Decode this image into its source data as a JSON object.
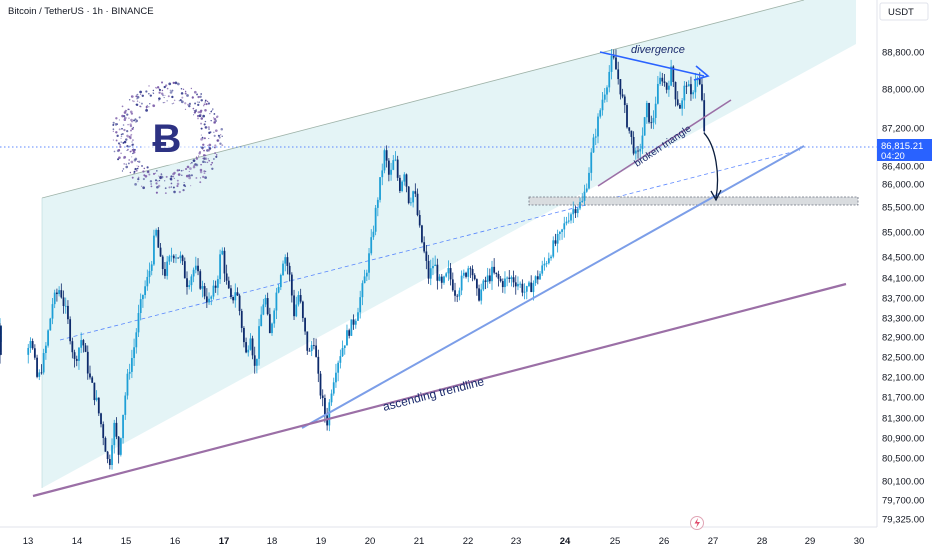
{
  "header": {
    "title": "Bitcoin / TetherUS · 1h · BINANCE",
    "currency": "USDT"
  },
  "price_badge": {
    "price": "86,815.21",
    "countdown": "04:20",
    "color": "#2962ff"
  },
  "alert_icon": "lightning-icon",
  "logo_icon": "bitcoin-logo-icon",
  "colors": {
    "up": "#1e9fd6",
    "down": "#0d2a6b",
    "channel_fill": "#dff2f5",
    "trendline": "#7c9ee8",
    "support": "#9b6fa6"
  },
  "annotations": {
    "divergence": "divergence",
    "broken_triangle": "broken triangle",
    "ascending_trendline": "ascending trendline"
  },
  "chart_data": {
    "type": "candlestick",
    "title": "Bitcoin / TetherUS · 1h · BINANCE",
    "ylim": [
      79325,
      89700
    ],
    "y_ticks": [
      {
        "value": 88800,
        "label": "88,800.00"
      },
      {
        "value": 88000,
        "label": "88,000.00"
      },
      {
        "value": 87200,
        "label": "87,200.00"
      },
      {
        "value": 86400,
        "label": "86,400.00"
      },
      {
        "value": 86000,
        "label": "86,000.00"
      },
      {
        "value": 85500,
        "label": "85,500.00"
      },
      {
        "value": 85000,
        "label": "85,000.00"
      },
      {
        "value": 84500,
        "label": "84,500.00"
      },
      {
        "value": 84100,
        "label": "84,100.00"
      },
      {
        "value": 83700,
        "label": "83,700.00"
      },
      {
        "value": 83300,
        "label": "83,300.00"
      },
      {
        "value": 82900,
        "label": "82,900.00"
      },
      {
        "value": 82500,
        "label": "82,500.00"
      },
      {
        "value": 82100,
        "label": "82,100.00"
      },
      {
        "value": 81700,
        "label": "81,700.00"
      },
      {
        "value": 81300,
        "label": "81,300.00"
      },
      {
        "value": 80900,
        "label": "80,900.00"
      },
      {
        "value": 80500,
        "label": "80,500.00"
      },
      {
        "value": 80100,
        "label": "80,100.00"
      },
      {
        "value": 79700,
        "label": "79,700.00"
      },
      {
        "value": 79325,
        "label": "79,325.00"
      }
    ],
    "x_ticks": [
      {
        "day": 13,
        "label": "13",
        "bold": false
      },
      {
        "day": 14,
        "label": "14",
        "bold": false
      },
      {
        "day": 15,
        "label": "15",
        "bold": false
      },
      {
        "day": 16,
        "label": "16",
        "bold": false
      },
      {
        "day": 17,
        "label": "17",
        "bold": true
      },
      {
        "day": 18,
        "label": "18",
        "bold": false
      },
      {
        "day": 19,
        "label": "19",
        "bold": false
      },
      {
        "day": 20,
        "label": "20",
        "bold": false
      },
      {
        "day": 21,
        "label": "21",
        "bold": false
      },
      {
        "day": 22,
        "label": "22",
        "bold": false
      },
      {
        "day": 23,
        "label": "23",
        "bold": false
      },
      {
        "day": 24,
        "label": "24",
        "bold": true
      },
      {
        "day": 25,
        "label": "25",
        "bold": false
      },
      {
        "day": 26,
        "label": "26",
        "bold": false
      },
      {
        "day": 27,
        "label": "27",
        "bold": false
      },
      {
        "day": 28,
        "label": "28",
        "bold": false
      },
      {
        "day": 29,
        "label": "29",
        "bold": false
      },
      {
        "day": 30,
        "label": "30",
        "bold": false
      }
    ],
    "current_price": 86815.21,
    "price_path": [
      [
        12.6,
        82800
      ],
      [
        12.75,
        83300
      ],
      [
        12.9,
        82500
      ],
      [
        13.05,
        82900
      ],
      [
        13.2,
        82000
      ],
      [
        13.35,
        82600
      ],
      [
        13.5,
        83600
      ],
      [
        13.65,
        83900
      ],
      [
        13.8,
        83300
      ],
      [
        13.95,
        82400
      ],
      [
        14.1,
        82900
      ],
      [
        14.25,
        82100
      ],
      [
        14.4,
        81600
      ],
      [
        14.55,
        80900
      ],
      [
        14.65,
        80300
      ],
      [
        14.75,
        81200
      ],
      [
        14.85,
        80600
      ],
      [
        14.95,
        81500
      ],
      [
        15.05,
        82200
      ],
      [
        15.15,
        82600
      ],
      [
        15.25,
        83300
      ],
      [
        15.35,
        83800
      ],
      [
        15.45,
        84100
      ],
      [
        15.55,
        84600
      ],
      [
        15.6,
        85100
      ],
      [
        15.7,
        84400
      ],
      [
        15.8,
        84200
      ],
      [
        15.95,
        84600
      ],
      [
        16.1,
        84500
      ],
      [
        16.25,
        84000
      ],
      [
        16.4,
        84300
      ],
      [
        16.55,
        83900
      ],
      [
        16.7,
        83600
      ],
      [
        16.85,
        84000
      ],
      [
        16.95,
        84700
      ],
      [
        17.05,
        84000
      ],
      [
        17.15,
        83600
      ],
      [
        17.25,
        83900
      ],
      [
        17.35,
        83300
      ],
      [
        17.45,
        82500
      ],
      [
        17.55,
        83000
      ],
      [
        17.65,
        82200
      ],
      [
        17.75,
        83200
      ],
      [
        17.85,
        83800
      ],
      [
        17.95,
        82900
      ],
      [
        18.05,
        83600
      ],
      [
        18.15,
        84100
      ],
      [
        18.25,
        84600
      ],
      [
        18.35,
        84200
      ],
      [
        18.45,
        83400
      ],
      [
        18.55,
        83800
      ],
      [
        18.65,
        83100
      ],
      [
        18.75,
        82500
      ],
      [
        18.85,
        82900
      ],
      [
        18.95,
        82000
      ],
      [
        19.05,
        81500
      ],
      [
        19.12,
        81200
      ],
      [
        19.2,
        81800
      ],
      [
        19.3,
        82300
      ],
      [
        19.4,
        82600
      ],
      [
        19.55,
        83000
      ],
      [
        19.7,
        83300
      ],
      [
        19.85,
        83900
      ],
      [
        20.0,
        84600
      ],
      [
        20.1,
        85300
      ],
      [
        20.2,
        86000
      ],
      [
        20.3,
        86700
      ],
      [
        20.4,
        86100
      ],
      [
        20.5,
        86600
      ],
      [
        20.6,
        85900
      ],
      [
        20.7,
        86300
      ],
      [
        20.8,
        85600
      ],
      [
        20.9,
        85900
      ],
      [
        21.0,
        85100
      ],
      [
        21.1,
        84600
      ],
      [
        21.2,
        84100
      ],
      [
        21.3,
        84400
      ],
      [
        21.45,
        83900
      ],
      [
        21.6,
        84200
      ],
      [
        21.75,
        83800
      ],
      [
        21.9,
        84100
      ],
      [
        22.05,
        84400
      ],
      [
        22.2,
        83700
      ],
      [
        22.35,
        84000
      ],
      [
        22.5,
        84200
      ],
      [
        22.7,
        84000
      ],
      [
        22.9,
        84100
      ],
      [
        23.05,
        84000
      ],
      [
        23.2,
        83800
      ],
      [
        23.35,
        84000
      ],
      [
        23.5,
        84200
      ],
      [
        23.6,
        84400
      ],
      [
        23.75,
        84700
      ],
      [
        23.9,
        84900
      ],
      [
        24.05,
        85300
      ],
      [
        24.2,
        85500
      ],
      [
        24.35,
        85600
      ],
      [
        24.45,
        86100
      ],
      [
        24.55,
        86800
      ],
      [
        24.65,
        87300
      ],
      [
        24.75,
        87800
      ],
      [
        24.85,
        88200
      ],
      [
        24.95,
        88700
      ],
      [
        25.05,
        88300
      ],
      [
        25.15,
        87800
      ],
      [
        25.25,
        87300
      ],
      [
        25.35,
        86900
      ],
      [
        25.45,
        86500
      ],
      [
        25.55,
        87000
      ],
      [
        25.65,
        87600
      ],
      [
        25.75,
        87200
      ],
      [
        25.85,
        87900
      ],
      [
        25.95,
        88300
      ],
      [
        26.05,
        88000
      ],
      [
        26.15,
        88400
      ],
      [
        26.25,
        87800
      ],
      [
        26.35,
        87600
      ],
      [
        26.45,
        88200
      ],
      [
        26.55,
        87800
      ],
      [
        26.65,
        88300
      ],
      [
        26.75,
        88000
      ],
      [
        26.8,
        87400
      ],
      [
        26.85,
        86815
      ]
    ]
  }
}
